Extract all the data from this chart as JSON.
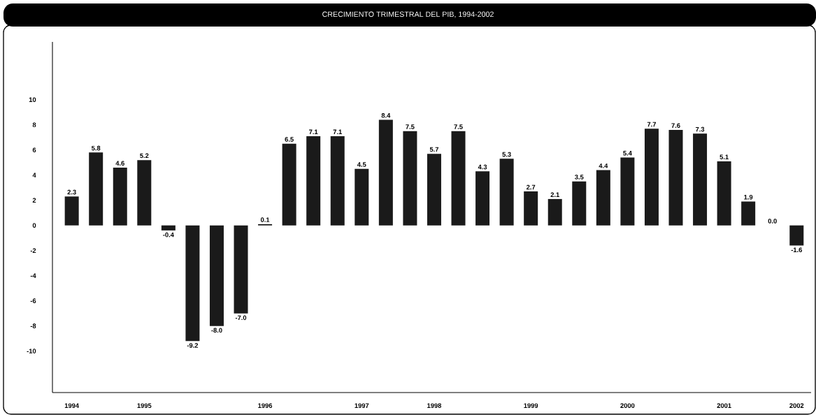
{
  "chart_data": {
    "type": "bar",
    "title": "CRECIMIENTO TRIMESTRAL DEL PIB, 1994-2002",
    "categories": [
      "1994",
      null,
      null,
      "1995",
      null,
      null,
      null,
      null,
      "1996",
      null,
      null,
      null,
      "1997",
      null,
      null,
      "1998",
      null,
      null,
      null,
      "1999",
      null,
      null,
      null,
      "2000",
      null,
      null,
      null,
      "2001",
      null,
      null,
      "2002"
    ],
    "values": [
      2.3,
      5.8,
      4.6,
      5.2,
      -0.4,
      -9.2,
      -8.0,
      -7.0,
      0.1,
      6.5,
      7.1,
      7.1,
      4.5,
      8.4,
      7.5,
      5.7,
      7.5,
      4.3,
      5.3,
      2.7,
      2.1,
      3.5,
      4.4,
      5.4,
      7.7,
      7.6,
      7.3,
      5.1,
      1.9,
      0.0,
      -1.6
    ],
    "color": "#1a1a1a",
    "ylim": [
      -13.3,
      14.6
    ],
    "yticks": [
      -10,
      -8,
      -6,
      -4,
      -2,
      0,
      2,
      4,
      6,
      8,
      10
    ],
    "value_labels": [
      "2.3",
      "5.8",
      "4.6",
      "5.2",
      "-0.4",
      "-9.2",
      "-8.0",
      "-7.0",
      "0.1",
      "6.5",
      "7.1",
      "7.1",
      "4.5",
      "8.4",
      "7.5",
      "5.7",
      "7.5",
      "4.3",
      "5.3",
      "2.7",
      "2.1",
      "3.5",
      "4.4",
      "5.4",
      "7.7",
      "7.6",
      "7.3",
      "5.1",
      "1.9",
      "0.0",
      "-1.6"
    ]
  }
}
